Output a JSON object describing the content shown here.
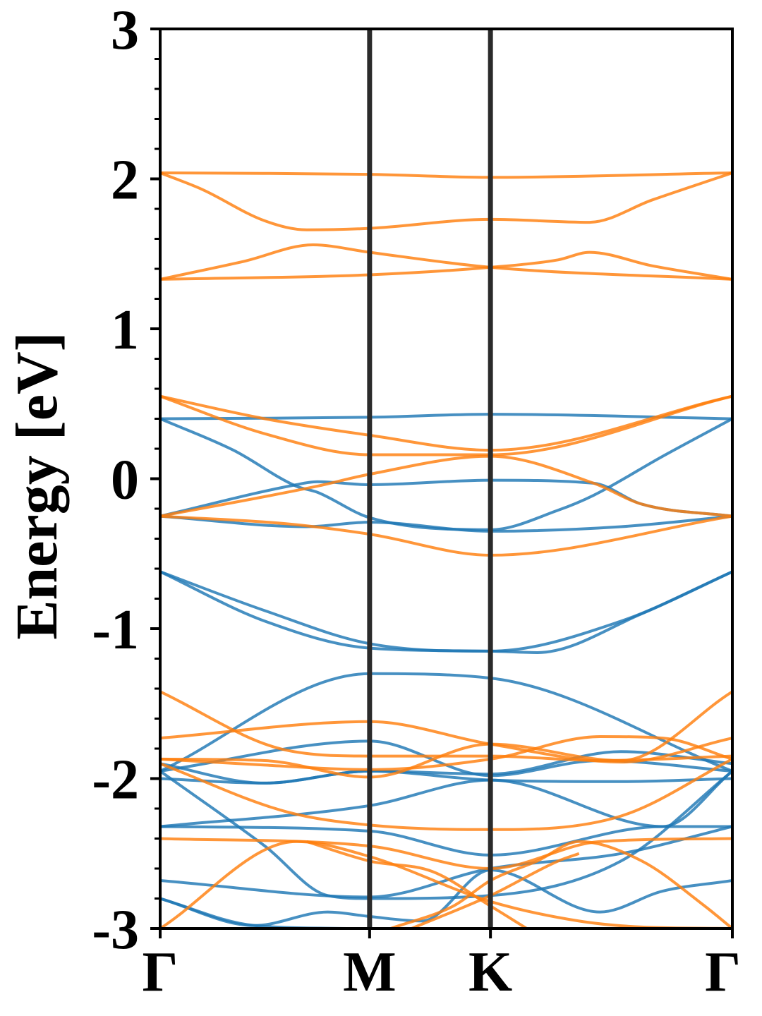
{
  "chart_data": {
    "type": "line",
    "title": "",
    "xlabel": "",
    "ylabel": "Energy [eV]",
    "ylim": [
      -3,
      3
    ],
    "yticks": [
      "3",
      "2",
      "1",
      "0",
      "-1",
      "-2",
      "-3"
    ],
    "x_ticks": [
      {
        "label": "Γ",
        "pos": 0
      },
      {
        "label": "M",
        "pos": 1
      },
      {
        "label": "K",
        "pos": 1.577
      },
      {
        "label": "Γ",
        "pos": 2.732
      }
    ],
    "grid": false,
    "colors": {
      "spin_up": "#1f77b4",
      "spin_down": "#ff7f0e",
      "vline": "#2b2b2b"
    },
    "series": [
      {
        "color": "#ff7f0e",
        "values": [
          [
            0,
            2.04
          ],
          [
            1,
            2.03
          ],
          [
            1.577,
            2.01
          ],
          [
            2.732,
            2.04
          ]
        ]
      },
      {
        "color": "#ff7f0e",
        "values": [
          [
            0,
            2.04
          ],
          [
            0.2,
            1.93
          ],
          [
            0.5,
            1.72
          ],
          [
            0.7,
            1.66
          ],
          [
            1,
            1.67
          ],
          [
            1.577,
            1.73
          ],
          [
            2.05,
            1.71
          ],
          [
            2.35,
            1.86
          ],
          [
            2.732,
            2.04
          ]
        ]
      },
      {
        "color": "#ff7f0e",
        "values": [
          [
            0,
            1.33
          ],
          [
            0.4,
            1.45
          ],
          [
            0.73,
            1.56
          ],
          [
            1,
            1.51
          ],
          [
            1.577,
            1.41
          ],
          [
            2.732,
            1.33
          ]
        ]
      },
      {
        "color": "#ff7f0e",
        "values": [
          [
            0,
            1.33
          ],
          [
            1,
            1.36
          ],
          [
            1.577,
            1.41
          ],
          [
            1.9,
            1.46
          ],
          [
            2.05,
            1.51
          ],
          [
            2.35,
            1.42
          ],
          [
            2.732,
            1.33
          ]
        ]
      },
      {
        "color": "#1f77b4",
        "values": [
          [
            0,
            0.4
          ],
          [
            1,
            0.41
          ],
          [
            1.577,
            0.43
          ],
          [
            2.732,
            0.4
          ]
        ]
      },
      {
        "color": "#1f77b4",
        "values": [
          [
            0,
            0.4
          ],
          [
            0.35,
            0.19
          ],
          [
            0.65,
            -0.05
          ],
          [
            0.75,
            -0.09
          ],
          [
            1,
            -0.26
          ],
          [
            1.577,
            -0.34
          ],
          [
            1.9,
            -0.21
          ],
          [
            2.07,
            -0.11
          ],
          [
            2.4,
            0.15
          ],
          [
            2.732,
            0.4
          ]
        ]
      },
      {
        "color": "#1f77b4",
        "values": [
          [
            0,
            -0.25
          ],
          [
            0.65,
            -0.04
          ],
          [
            0.75,
            -0.02
          ],
          [
            1,
            -0.04
          ],
          [
            1.577,
            -0.01
          ],
          [
            2.07,
            -0.03
          ],
          [
            2.3,
            -0.17
          ],
          [
            2.732,
            -0.25
          ]
        ]
      },
      {
        "color": "#1f77b4",
        "values": [
          [
            0,
            -0.25
          ],
          [
            0.7,
            -0.32
          ],
          [
            1,
            -0.29
          ],
          [
            1.577,
            -0.35
          ],
          [
            2.2,
            -0.32
          ],
          [
            2.732,
            -0.25
          ]
        ]
      },
      {
        "color": "#ff7f0e",
        "values": [
          [
            0,
            0.55
          ],
          [
            0.5,
            0.4
          ],
          [
            1,
            0.29
          ],
          [
            1.577,
            0.19
          ],
          [
            2.732,
            0.55
          ]
        ]
      },
      {
        "color": "#ff7f0e",
        "values": [
          [
            0,
            0.55
          ],
          [
            0.5,
            0.3
          ],
          [
            1,
            0.16
          ],
          [
            1.577,
            0.16
          ],
          [
            2.732,
            0.55
          ]
        ]
      },
      {
        "color": "#ff7f0e",
        "values": [
          [
            0,
            -0.25
          ],
          [
            0.75,
            -0.05
          ],
          [
            1,
            0.03
          ],
          [
            1.577,
            0.15
          ],
          [
            2.07,
            -0.03
          ],
          [
            2.3,
            -0.17
          ],
          [
            2.732,
            -0.25
          ]
        ]
      },
      {
        "color": "#ff7f0e",
        "values": [
          [
            0,
            -0.25
          ],
          [
            0.6,
            -0.3
          ],
          [
            1,
            -0.37
          ],
          [
            1.577,
            -0.51
          ],
          [
            2.732,
            -0.25
          ]
        ]
      },
      {
        "color": "#1f77b4",
        "values": [
          [
            0,
            -0.62
          ],
          [
            0.5,
            -0.88
          ],
          [
            1,
            -1.1
          ],
          [
            1.577,
            -1.15
          ],
          [
            2.2,
            -0.95
          ],
          [
            2.732,
            -0.62
          ]
        ]
      },
      {
        "color": "#1f77b4",
        "values": [
          [
            0,
            -0.62
          ],
          [
            0.5,
            -0.95
          ],
          [
            1,
            -1.13
          ],
          [
            1.577,
            -1.15
          ],
          [
            1.8,
            -1.16
          ],
          [
            2.3,
            -0.9
          ],
          [
            2.732,
            -0.62
          ]
        ]
      },
      {
        "color": "#1f77b4",
        "values": [
          [
            0,
            -1.95
          ],
          [
            1,
            -1.3
          ],
          [
            1.577,
            -1.33
          ],
          [
            2.732,
            -1.95
          ]
        ]
      },
      {
        "color": "#1f77b4",
        "values": [
          [
            0,
            -1.95
          ],
          [
            1,
            -1.75
          ],
          [
            1.577,
            -1.98
          ],
          [
            2.1,
            -1.88
          ],
          [
            2.732,
            -1.95
          ]
        ]
      },
      {
        "color": "#1f77b4",
        "values": [
          [
            0,
            -1.9
          ],
          [
            0.5,
            -2.03
          ],
          [
            1,
            -1.95
          ],
          [
            1.577,
            -1.97
          ],
          [
            2.2,
            -1.82
          ],
          [
            2.732,
            -1.9
          ]
        ]
      },
      {
        "color": "#1f77b4",
        "values": [
          [
            0,
            -2.0
          ],
          [
            0.5,
            -2.03
          ],
          [
            1,
            -1.95
          ],
          [
            1.577,
            -2.01
          ],
          [
            2.2,
            -2.02
          ],
          [
            2.732,
            -2.0
          ]
        ]
      },
      {
        "color": "#1f77b4",
        "values": [
          [
            0,
            -2.32
          ],
          [
            1,
            -2.18
          ],
          [
            1.577,
            -2.01
          ],
          [
            2.4,
            -2.32
          ],
          [
            2.732,
            -1.95
          ]
        ]
      },
      {
        "color": "#1f77b4",
        "values": [
          [
            0,
            -2.32
          ],
          [
            1,
            -2.35
          ],
          [
            1.577,
            -2.51
          ],
          [
            2.4,
            -2.32
          ],
          [
            2.732,
            -2.32
          ]
        ]
      },
      {
        "color": "#1f77b4",
        "values": [
          [
            0,
            -1.95
          ],
          [
            0.5,
            -2.45
          ],
          [
            0.8,
            -2.78
          ],
          [
            1,
            -2.8
          ],
          [
            1.577,
            -2.78
          ],
          [
            2.2,
            -2.55
          ],
          [
            2.732,
            -1.95
          ]
        ]
      },
      {
        "color": "#1f77b4",
        "values": [
          [
            0,
            -2.68
          ],
          [
            1,
            -2.79
          ],
          [
            1.577,
            -2.6
          ],
          [
            2.2,
            -2.5
          ],
          [
            2.732,
            -2.32
          ]
        ]
      },
      {
        "color": "#1f77b4",
        "values": [
          [
            0,
            -2.8
          ],
          [
            0.45,
            -2.98
          ],
          [
            0.8,
            -2.89
          ],
          [
            1,
            -2.92
          ],
          [
            1.25,
            -2.95
          ],
          [
            1.577,
            -2.61
          ],
          [
            2.1,
            -2.89
          ],
          [
            2.4,
            -2.75
          ],
          [
            2.732,
            -2.68
          ]
        ]
      },
      {
        "color": "#1f77b4",
        "values": [
          [
            0,
            -2.8
          ],
          [
            0.45,
            -2.98
          ],
          [
            0.9,
            -3.0
          ]
        ]
      },
      {
        "color": "#ff7f0e",
        "values": [
          [
            0,
            -1.42
          ],
          [
            0.6,
            -1.81
          ],
          [
            1,
            -1.85
          ],
          [
            1.577,
            -1.85
          ],
          [
            2.1,
            -1.88
          ],
          [
            2.732,
            -1.85
          ]
        ]
      },
      {
        "color": "#ff7f0e",
        "values": [
          [
            0,
            -1.73
          ],
          [
            1,
            -1.62
          ],
          [
            1.577,
            -1.77
          ],
          [
            2.2,
            -1.89
          ],
          [
            2.732,
            -1.73
          ]
        ]
      },
      {
        "color": "#ff7f0e",
        "values": [
          [
            0,
            -1.87
          ],
          [
            0.5,
            -1.91
          ],
          [
            1,
            -1.94
          ],
          [
            1.577,
            -1.87
          ],
          [
            2.1,
            -1.72
          ],
          [
            2.4,
            -1.73
          ],
          [
            2.732,
            -1.87
          ]
        ]
      },
      {
        "color": "#ff7f0e",
        "values": [
          [
            0,
            -1.87
          ],
          [
            0.5,
            -1.88
          ],
          [
            1,
            -1.99
          ],
          [
            1.577,
            -1.77
          ],
          [
            2.2,
            -1.88
          ],
          [
            2.732,
            -1.42
          ]
        ]
      },
      {
        "color": "#ff7f0e",
        "values": [
          [
            0,
            -1.9
          ],
          [
            0.6,
            -2.22
          ],
          [
            1,
            -2.31
          ],
          [
            1.577,
            -2.34
          ],
          [
            2.2,
            -2.25
          ],
          [
            2.732,
            -1.87
          ]
        ]
      },
      {
        "color": "#ff7f0e",
        "values": [
          [
            0,
            -2.4
          ],
          [
            1,
            -2.45
          ],
          [
            1.577,
            -2.6
          ],
          [
            2.1,
            -2.42
          ],
          [
            2.732,
            -2.4
          ]
        ]
      },
      {
        "color": "#ff7f0e",
        "values": [
          [
            0,
            -3.0
          ],
          [
            0.65,
            -2.42
          ],
          [
            1,
            -2.52
          ],
          [
            1.577,
            -2.82
          ],
          [
            2.0,
            -2.95
          ],
          [
            2.3,
            -2.99
          ],
          [
            2.732,
            -3.0
          ]
        ]
      },
      {
        "color": "#ff7f0e",
        "values": [
          [
            0.7,
            -2.42
          ],
          [
            1,
            -2.55
          ],
          [
            1.3,
            -2.62
          ],
          [
            1.577,
            -2.85
          ],
          [
            1.75,
            -3.0
          ]
        ]
      },
      {
        "color": "#ff7f0e",
        "values": [
          [
            1.1,
            -3.0
          ],
          [
            1.4,
            -2.85
          ],
          [
            1.577,
            -2.68
          ],
          [
            1.8,
            -2.55
          ],
          [
            2.0,
            -2.42
          ],
          [
            2.3,
            -2.55
          ],
          [
            2.6,
            -2.85
          ],
          [
            2.732,
            -3.0
          ]
        ]
      },
      {
        "color": "#ff7f0e",
        "values": [
          [
            1.2,
            -3.0
          ],
          [
            1.577,
            -2.78
          ],
          [
            1.9,
            -2.55
          ],
          [
            2.0,
            -2.5
          ]
        ]
      }
    ]
  }
}
